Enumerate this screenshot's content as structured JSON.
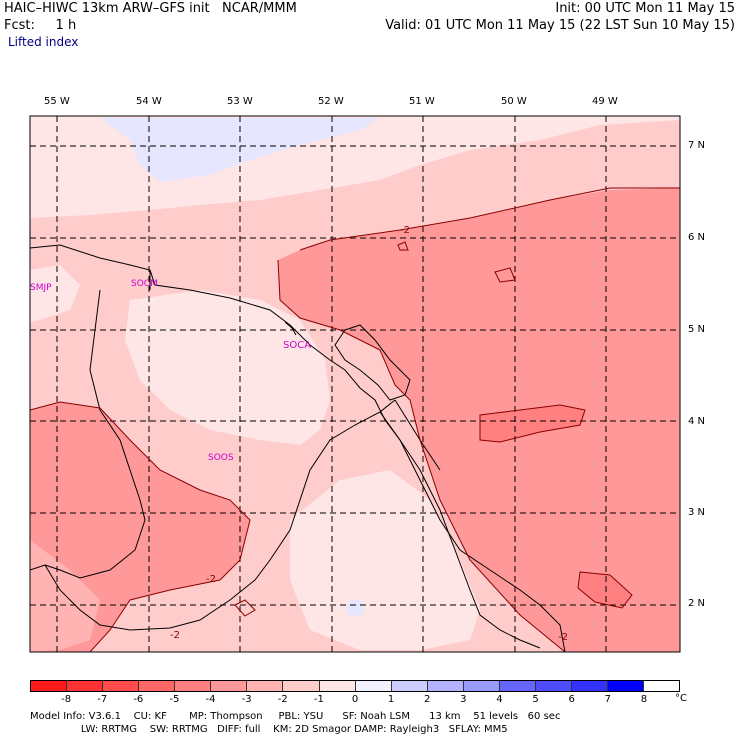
{
  "header": {
    "model_line": "HAIC–HIWC 13km ARW–GFS init   NCAR/MMM",
    "init_line": "Init: 00 UTC Mon 11 May 15",
    "fcst_line": "Fcst:     1 h",
    "valid_line": "Valid: 01 UTC Mon 11 May 15 (22 LST Sun 10 May 15)",
    "field_name": "Lifted index"
  },
  "map": {
    "lon_labels": [
      "55 W",
      "54 W",
      "53 W",
      "52 W",
      "51 W",
      "50 W",
      "49 W"
    ],
    "lat_labels": [
      "7 N",
      "6 N",
      "5 N",
      "4 N",
      "3 N",
      "2 N"
    ],
    "stations": [
      "SMJP",
      "SOCM",
      "SOCA",
      "SOOS"
    ],
    "contour_labels": [
      "-2",
      "-2",
      "-2",
      "-2"
    ]
  },
  "colorbar": {
    "tick_labels": [
      "-8",
      "-7",
      "-6",
      "-5",
      "-4",
      "-3",
      "-2",
      "-1",
      "0",
      "1",
      "2",
      "3",
      "4",
      "5",
      "6",
      "7",
      "8"
    ],
    "unit": "°C",
    "colors": [
      "#ff1a1a",
      "#ff3333",
      "#ff4d4d",
      "#ff6666",
      "#ff8080",
      "#ff9999",
      "#ffb3b3",
      "#ffcccc",
      "#ffe6e6",
      "#f2f2ff",
      "#ccccff",
      "#b3b3ff",
      "#9999ff",
      "#6666ff",
      "#4d4dff",
      "#3333ff",
      "#0000ff"
    ]
  },
  "footer": {
    "line1": "Model Info: V3.6.1    CU: KF       MP: Thompson     PBL: YSU      SF: Noah LSM      13 km    51 levels   60 sec",
    "line2": "                LW: RRTMG    SW: RRTMG   DIFF: full    KM: 2D Smagor DAMP: Rayleigh3   SFLAY: MM5"
  }
}
